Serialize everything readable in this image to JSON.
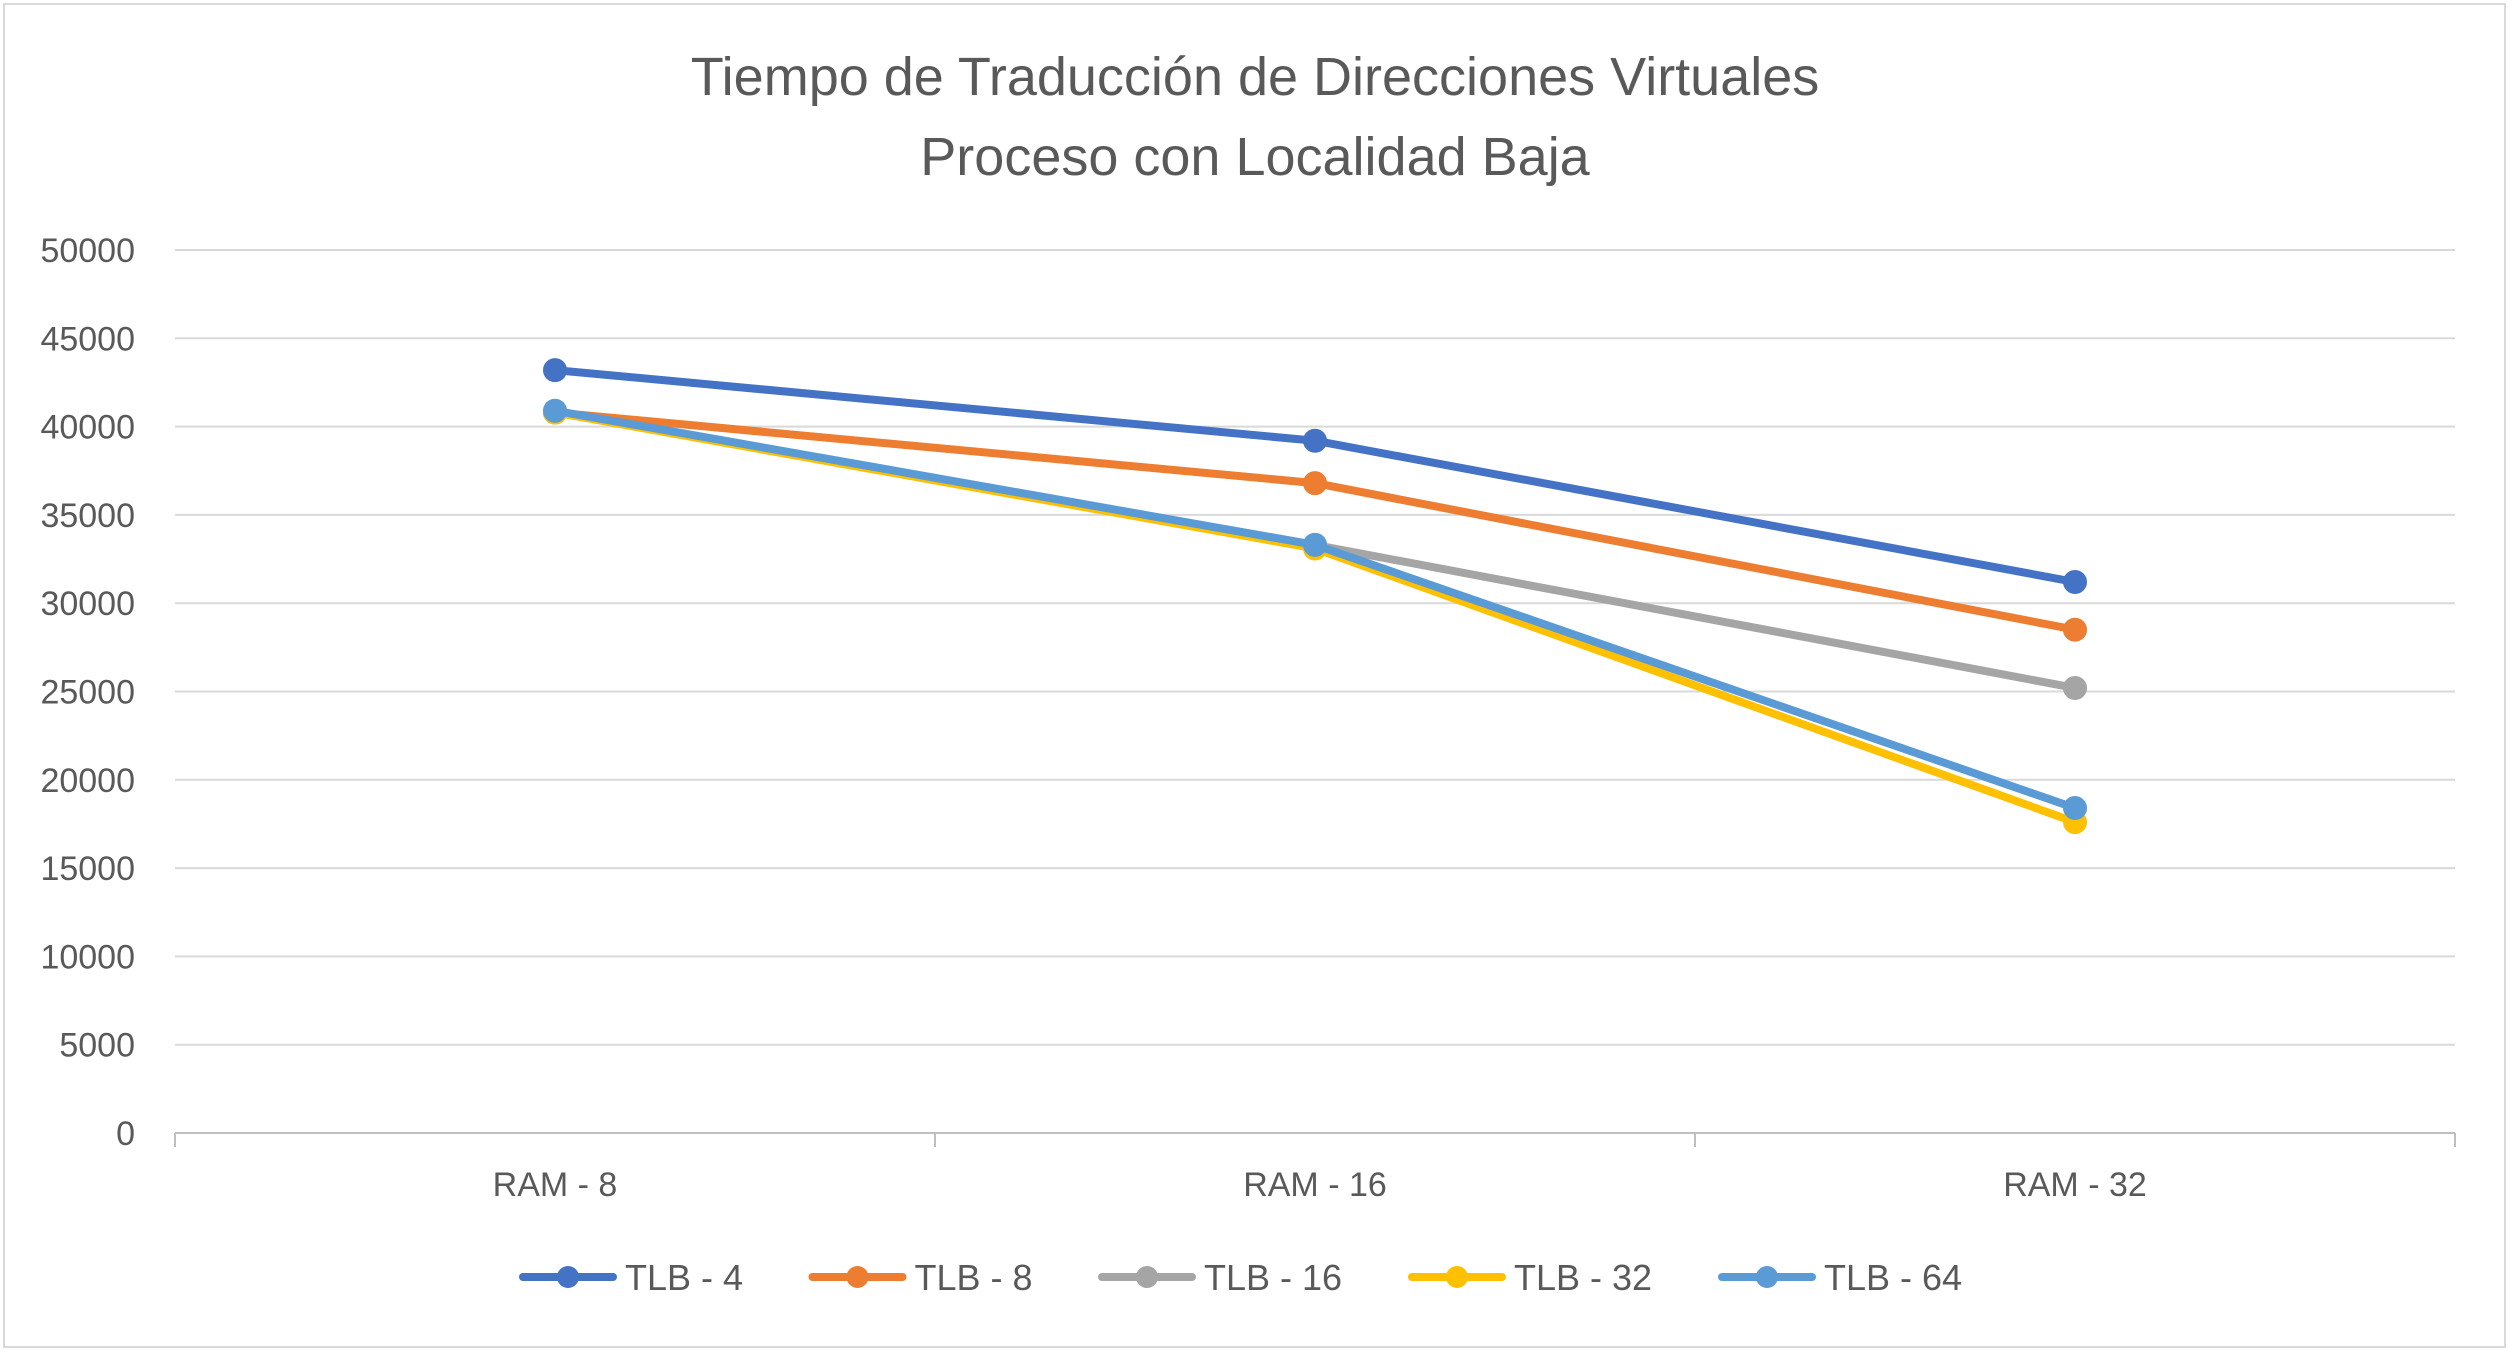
{
  "chart_data": {
    "type": "line",
    "title": [
      "Tiempo de Traducción de Direcciones Virtuales",
      "Proceso con Localidad Baja"
    ],
    "xlabel": "",
    "ylabel": "",
    "categories": [
      "RAM - 8",
      "RAM - 16",
      "RAM - 32"
    ],
    "ylim": [
      0,
      50000
    ],
    "yticks": [
      0,
      5000,
      10000,
      15000,
      20000,
      25000,
      30000,
      35000,
      40000,
      45000,
      50000
    ],
    "grid": true,
    "legend_position": "bottom",
    "series": [
      {
        "name": "TLB - 4",
        "color": "#4472C4",
        "values": [
          43200,
          39200,
          31200
        ]
      },
      {
        "name": "TLB - 8",
        "color": "#ED7D31",
        "values": [
          40800,
          36800,
          28500
        ]
      },
      {
        "name": "TLB - 16",
        "color": "#A5A5A5",
        "values": [
          40800,
          33300,
          25200
        ]
      },
      {
        "name": "TLB - 32",
        "color": "#FFC000",
        "values": [
          40800,
          33100,
          17600
        ]
      },
      {
        "name": "TLB - 64",
        "color": "#5B9BD5",
        "values": [
          40900,
          33300,
          18400
        ]
      }
    ]
  }
}
